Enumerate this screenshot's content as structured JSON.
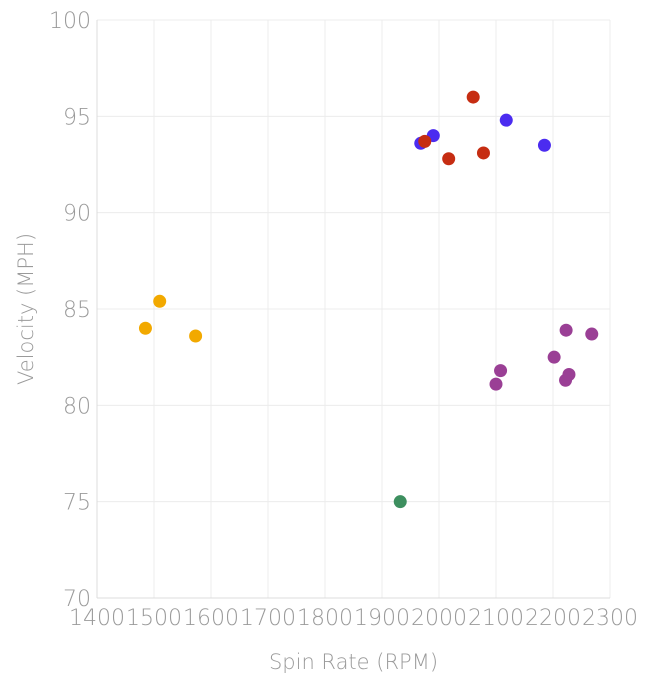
{
  "chart_data": {
    "type": "scatter",
    "title": "",
    "xlabel": "Spin Rate (RPM)",
    "ylabel": "Velocity (MPH)",
    "xlim": [
      1400,
      2300
    ],
    "ylim": [
      70,
      100
    ],
    "x_ticks": [
      1400,
      1500,
      1600,
      1700,
      1800,
      1900,
      2000,
      2100,
      2200,
      2300
    ],
    "y_ticks": [
      70,
      75,
      80,
      85,
      90,
      95,
      100
    ],
    "grid": true,
    "legend": "none",
    "series": [
      {
        "color": "#f2a900",
        "points": [
          {
            "x": 1485,
            "y": 84.0
          },
          {
            "x": 1510,
            "y": 85.4
          },
          {
            "x": 1573,
            "y": 83.6
          }
        ]
      },
      {
        "color": "#3d8f5f",
        "points": [
          {
            "x": 1932,
            "y": 75.0
          }
        ]
      },
      {
        "color": "#4b2cf0",
        "points": [
          {
            "x": 1968,
            "y": 93.6
          },
          {
            "x": 1990,
            "y": 94.0
          },
          {
            "x": 2118,
            "y": 94.8
          },
          {
            "x": 2185,
            "y": 93.5
          }
        ]
      },
      {
        "color": "#c62d12",
        "points": [
          {
            "x": 1975,
            "y": 93.7
          },
          {
            "x": 2017,
            "y": 92.8
          },
          {
            "x": 2060,
            "y": 96.0
          },
          {
            "x": 2078,
            "y": 93.1
          }
        ]
      },
      {
        "color": "#9a3f95",
        "points": [
          {
            "x": 2100,
            "y": 81.1
          },
          {
            "x": 2108,
            "y": 81.8
          },
          {
            "x": 2202,
            "y": 82.5
          },
          {
            "x": 2223,
            "y": 83.9
          },
          {
            "x": 2222,
            "y": 81.3
          },
          {
            "x": 2228,
            "y": 81.6
          },
          {
            "x": 2268,
            "y": 83.7
          }
        ]
      }
    ]
  }
}
